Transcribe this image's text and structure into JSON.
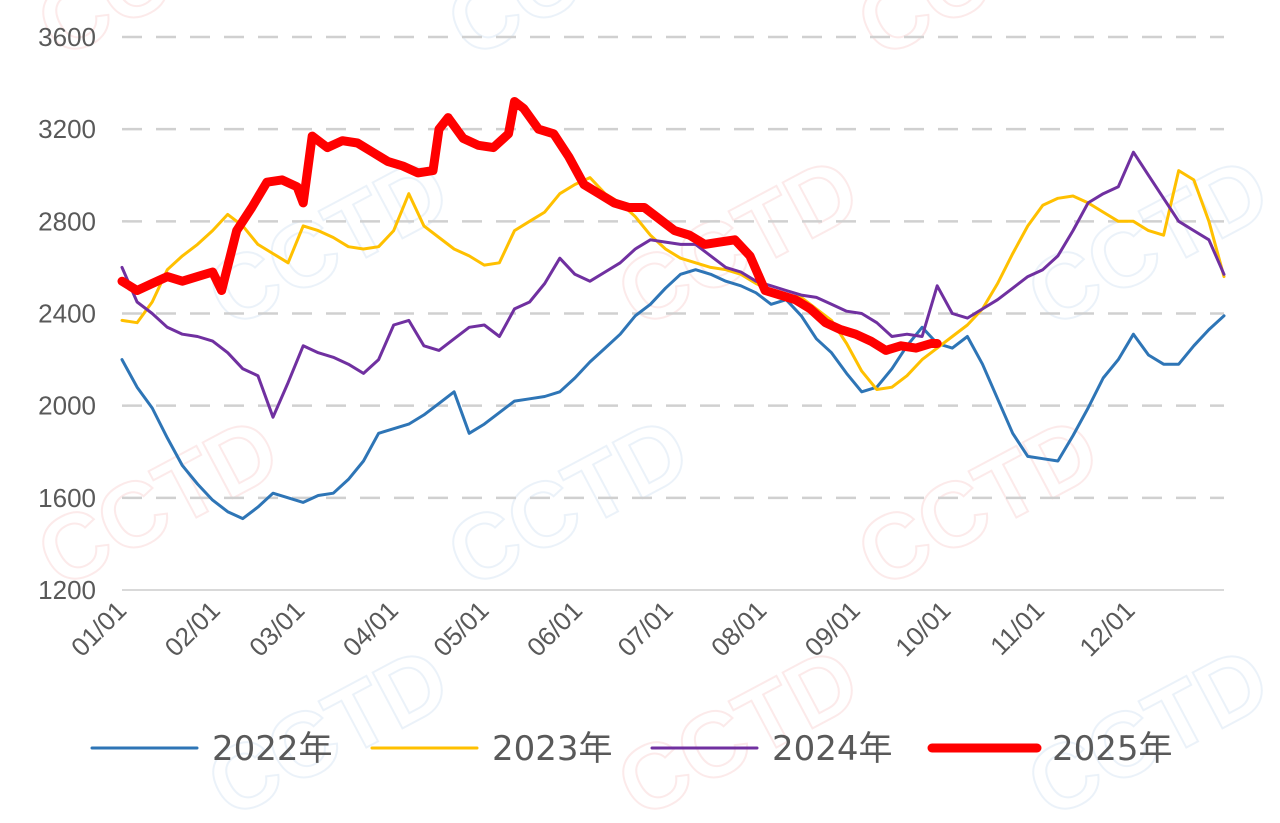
{
  "watermark": "CCTD",
  "chart_data": {
    "type": "line",
    "title": "",
    "xlabel": "",
    "ylabel": "",
    "ylim": [
      1200,
      3600
    ],
    "yticks": [
      1200,
      1600,
      2000,
      2400,
      2800,
      3200,
      3600
    ],
    "ytick_labels": [
      "1200",
      "1600",
      "2000",
      "2400",
      "2800",
      "3200",
      "3600"
    ],
    "xlim": [
      0,
      365
    ],
    "xticks": [
      0,
      31,
      59,
      90,
      120,
      151,
      181,
      212,
      243,
      273,
      304,
      334
    ],
    "xtick_labels": [
      "01/01",
      "02/01",
      "03/01",
      "04/01",
      "05/01",
      "06/01",
      "07/01",
      "08/01",
      "09/01",
      "10/01",
      "11/01",
      "12/01"
    ],
    "grid": "horizontal-dashed",
    "legend": "bottom",
    "series": [
      {
        "name": "2022年",
        "color": "#2E75B6",
        "x": [
          0,
          5,
          10,
          15,
          20,
          25,
          30,
          35,
          40,
          45,
          50,
          55,
          60,
          65,
          70,
          75,
          80,
          85,
          90,
          95,
          100,
          105,
          110,
          115,
          120,
          125,
          130,
          135,
          140,
          145,
          150,
          155,
          160,
          165,
          170,
          175,
          180,
          185,
          190,
          195,
          200,
          205,
          210,
          215,
          220,
          225,
          230,
          235,
          240,
          245,
          250,
          255,
          260,
          265,
          270,
          275,
          280,
          285,
          290,
          295,
          300,
          305,
          310,
          315,
          320,
          325,
          330,
          335,
          340,
          345,
          350,
          355,
          360,
          365
        ],
        "values": [
          2200,
          2080,
          1990,
          1860,
          1740,
          1660,
          1590,
          1540,
          1510,
          1560,
          1620,
          1600,
          1580,
          1610,
          1620,
          1680,
          1760,
          1880,
          1900,
          1920,
          1960,
          2010,
          2060,
          1880,
          1920,
          1970,
          2020,
          2030,
          2040,
          2060,
          2120,
          2190,
          2250,
          2310,
          2390,
          2440,
          2510,
          2570,
          2590,
          2570,
          2540,
          2520,
          2490,
          2440,
          2460,
          2390,
          2290,
          2230,
          2140,
          2060,
          2080,
          2160,
          2260,
          2340,
          2270,
          2250,
          2300,
          2180,
          2030,
          1880,
          1780,
          1770,
          1760,
          1870,
          1990,
          2120,
          2200,
          2310,
          2220,
          2180,
          2180,
          2260,
          2330,
          2390
        ]
      },
      {
        "name": "2023年",
        "color": "#FFC000",
        "x": [
          0,
          5,
          10,
          15,
          20,
          25,
          30,
          35,
          40,
          45,
          50,
          55,
          60,
          65,
          70,
          75,
          80,
          85,
          90,
          95,
          100,
          105,
          110,
          115,
          120,
          125,
          130,
          135,
          140,
          145,
          150,
          155,
          160,
          165,
          170,
          175,
          180,
          185,
          190,
          195,
          200,
          205,
          210,
          215,
          220,
          225,
          230,
          235,
          240,
          245,
          250,
          255,
          260,
          265,
          270,
          275,
          280,
          285,
          290,
          295,
          300,
          305,
          310,
          315,
          320,
          325,
          330,
          335,
          340,
          345,
          350,
          355,
          360,
          365
        ],
        "values": [
          2370,
          2360,
          2450,
          2590,
          2650,
          2700,
          2760,
          2830,
          2780,
          2700,
          2660,
          2620,
          2780,
          2760,
          2730,
          2690,
          2680,
          2690,
          2760,
          2920,
          2780,
          2730,
          2680,
          2650,
          2610,
          2620,
          2760,
          2800,
          2840,
          2920,
          2960,
          2990,
          2920,
          2880,
          2820,
          2740,
          2680,
          2640,
          2620,
          2600,
          2590,
          2570,
          2530,
          2500,
          2480,
          2470,
          2420,
          2370,
          2270,
          2150,
          2070,
          2080,
          2130,
          2200,
          2250,
          2300,
          2350,
          2420,
          2530,
          2660,
          2780,
          2870,
          2900,
          2910,
          2880,
          2840,
          2800,
          2800,
          2760,
          2740,
          3020,
          2980,
          2800,
          2560
        ]
      },
      {
        "name": "2024年",
        "color": "#7030A0",
        "x": [
          0,
          5,
          10,
          15,
          20,
          25,
          30,
          35,
          40,
          45,
          50,
          55,
          60,
          65,
          70,
          75,
          80,
          85,
          90,
          95,
          100,
          105,
          110,
          115,
          120,
          125,
          130,
          135,
          140,
          145,
          150,
          155,
          160,
          165,
          170,
          175,
          180,
          185,
          190,
          195,
          200,
          205,
          210,
          215,
          220,
          225,
          230,
          235,
          240,
          245,
          250,
          255,
          260,
          265,
          270,
          275,
          280,
          285,
          290,
          295,
          300,
          305,
          310,
          315,
          320,
          325,
          330,
          335,
          340,
          345,
          350,
          355,
          360,
          365
        ],
        "values": [
          2600,
          2450,
          2400,
          2340,
          2310,
          2300,
          2280,
          2230,
          2160,
          2130,
          1950,
          2100,
          2260,
          2230,
          2210,
          2180,
          2140,
          2200,
          2350,
          2370,
          2260,
          2240,
          2290,
          2340,
          2350,
          2300,
          2420,
          2450,
          2530,
          2640,
          2570,
          2540,
          2580,
          2620,
          2680,
          2720,
          2710,
          2700,
          2700,
          2650,
          2600,
          2580,
          2540,
          2520,
          2500,
          2480,
          2470,
          2440,
          2410,
          2400,
          2360,
          2300,
          2310,
          2300,
          2520,
          2400,
          2380,
          2420,
          2460,
          2510,
          2560,
          2590,
          2650,
          2760,
          2880,
          2920,
          2950,
          3100,
          3000,
          2900,
          2800,
          2760,
          2720,
          2570
        ]
      },
      {
        "name": "2025年",
        "color": "#FF0000",
        "x": [
          0,
          5,
          10,
          15,
          20,
          25,
          30,
          33,
          38,
          43,
          48,
          53,
          58,
          60,
          63,
          68,
          73,
          78,
          83,
          88,
          93,
          98,
          103,
          105,
          108,
          113,
          118,
          123,
          128,
          130,
          133,
          138,
          143,
          148,
          153,
          158,
          163,
          168,
          173,
          178,
          183,
          188,
          193,
          198,
          203,
          208,
          213,
          218,
          223,
          228,
          233,
          238,
          243,
          248,
          253,
          258,
          263,
          268,
          270
        ],
        "values": [
          2540,
          2500,
          2530,
          2560,
          2540,
          2560,
          2580,
          2500,
          2760,
          2860,
          2970,
          2980,
          2950,
          2880,
          3170,
          3120,
          3150,
          3140,
          3100,
          3060,
          3040,
          3010,
          3020,
          3200,
          3250,
          3160,
          3130,
          3120,
          3180,
          3320,
          3290,
          3200,
          3180,
          3080,
          2960,
          2920,
          2880,
          2860,
          2860,
          2810,
          2760,
          2740,
          2700,
          2710,
          2720,
          2650,
          2500,
          2480,
          2460,
          2420,
          2360,
          2330,
          2310,
          2280,
          2240,
          2260,
          2250,
          2270,
          2270
        ]
      }
    ]
  }
}
